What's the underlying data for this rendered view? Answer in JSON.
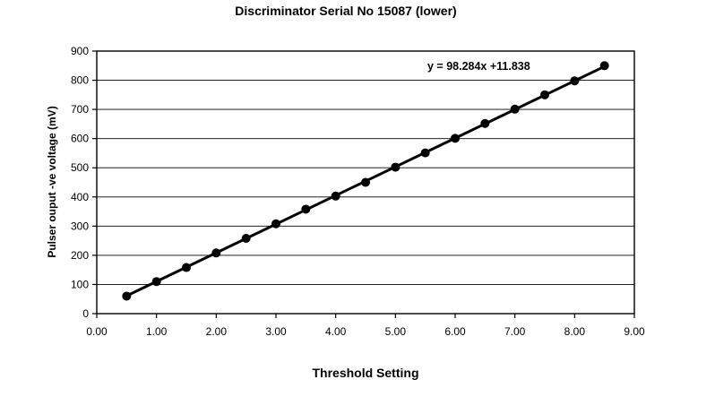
{
  "chart_data": {
    "type": "scatter",
    "title": "Discriminator Serial No 15087 (lower)",
    "xlabel": "Threshold Setting",
    "ylabel": "Pulser ouput -ve voltage (mV)",
    "xlim": [
      0,
      9
    ],
    "ylim": [
      0,
      900
    ],
    "x_ticks": [
      "0.00",
      "1.00",
      "2.00",
      "3.00",
      "4.00",
      "5.00",
      "6.00",
      "7.00",
      "8.00",
      "9.00"
    ],
    "y_ticks": [
      "0",
      "100",
      "200",
      "300",
      "400",
      "500",
      "600",
      "700",
      "800",
      "900"
    ],
    "grid": "horizontal",
    "series": [
      {
        "x": [
          0.5,
          1.0,
          1.5,
          2.0,
          2.5,
          3.0,
          3.5,
          4.0,
          4.5,
          5.0,
          5.5,
          6.0,
          6.5,
          7.0,
          7.5,
          8.0,
          8.5
        ],
        "values": [
          60,
          110,
          158,
          208,
          258,
          308,
          358,
          403,
          450,
          502,
          551,
          601,
          652,
          701,
          750,
          798,
          850
        ]
      }
    ],
    "trendline": {
      "slope": 98.284,
      "intercept": 11.838,
      "x_range": [
        0.5,
        8.5
      ]
    },
    "annotation": "y = 98.284x +11.838"
  }
}
